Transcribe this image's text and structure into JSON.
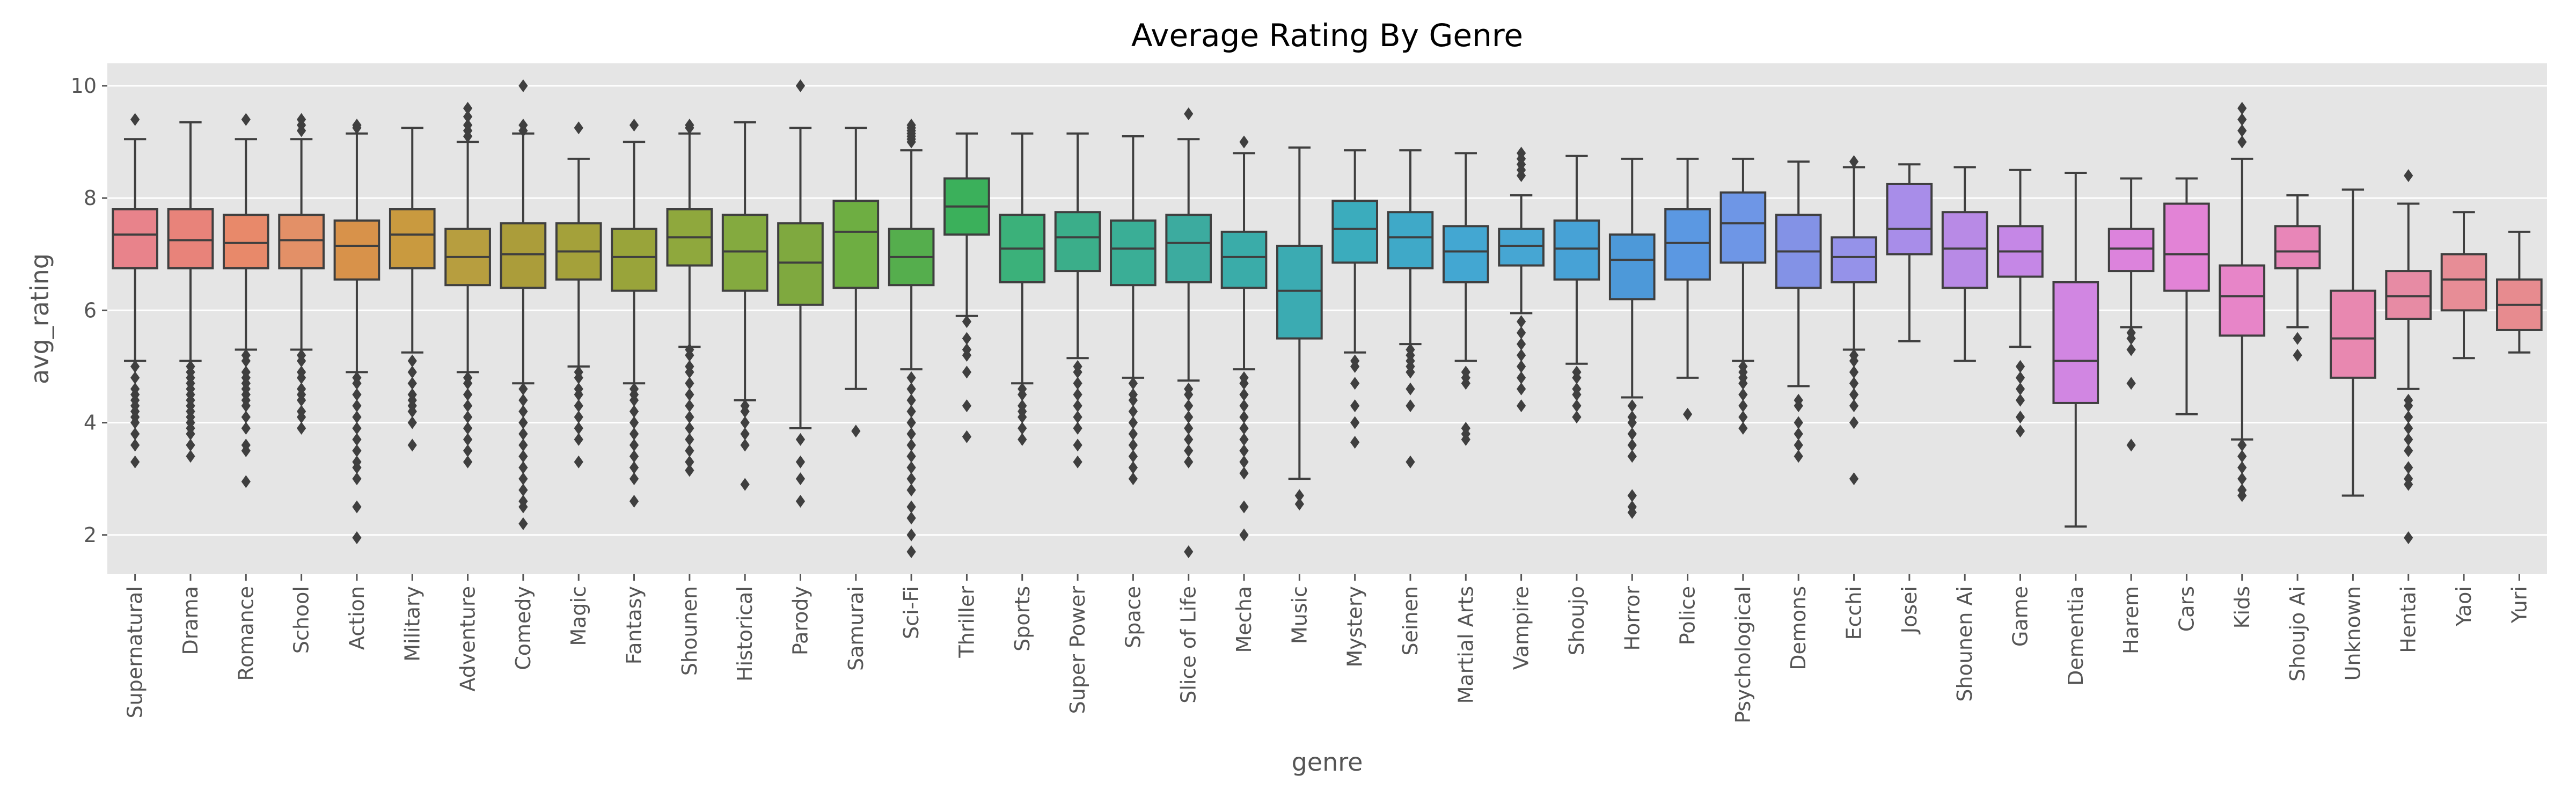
{
  "chart_data": {
    "type": "boxplot",
    "title": "Average Rating By Genre",
    "xlabel": "genre",
    "ylabel": "avg_rating",
    "ylim": [
      1.3,
      10.4
    ],
    "yticks": [
      2,
      4,
      6,
      8,
      10
    ],
    "grid": true,
    "background": "#e5e5e5",
    "categories": [
      "Supernatural",
      "Drama",
      "Romance",
      "School",
      "Action",
      "Military",
      "Adventure",
      "Comedy",
      "Magic",
      "Fantasy",
      "Shounen",
      "Historical",
      "Parody",
      "Samurai",
      "Sci-Fi",
      "Thriller",
      "Sports",
      "Super Power",
      "Space",
      "Slice of Life",
      "Mecha",
      "Music",
      "Mystery",
      "Seinen",
      "Martial Arts",
      "Vampire",
      "Shoujo",
      "Horror",
      "Police",
      "Psychological",
      "Demons",
      "Ecchi",
      "Josei",
      "Shounen Ai",
      "Game",
      "Dementia",
      "Harem",
      "Cars",
      "Kids",
      "Shoujo Ai",
      "Unknown",
      "Hentai",
      "Yaoi",
      "Yuri"
    ],
    "colors": [
      "#e8838b",
      "#e8837a",
      "#e8896a",
      "#e39067",
      "#d8924a",
      "#c99a3f",
      "#b79e3f",
      "#ab9d3a",
      "#a4a13a",
      "#99a43a",
      "#8fa83d",
      "#84aa3f",
      "#7fa93f",
      "#6eae42",
      "#55ae4d",
      "#3bb05b",
      "#3bb17a",
      "#3bae8a",
      "#3aae96",
      "#3cab9f",
      "#3aaca9",
      "#3babb2",
      "#3bacbd",
      "#3fa9c8",
      "#43a7d2",
      "#46a6d3",
      "#47a2d6",
      "#4d99d9",
      "#5b98e2",
      "#6e96e6",
      "#8392e6",
      "#9592e9",
      "#a88de9",
      "#b88ae6",
      "#c587e6",
      "#d186e2",
      "#dc83dc",
      "#e283d6",
      "#e785c8",
      "#e886b8",
      "#e888b0",
      "#e78ba4",
      "#e78d96",
      "#e78b8f"
    ],
    "boxes": [
      {
        "whislo": 5.1,
        "q1": 6.75,
        "med": 7.35,
        "q3": 7.8,
        "whishi": 9.05,
        "fliers": [
          9.4,
          5.0,
          4.8,
          4.6,
          4.5,
          4.4,
          4.3,
          4.2,
          4.1,
          4.0,
          3.8,
          3.6,
          3.3
        ]
      },
      {
        "whislo": 5.1,
        "q1": 6.75,
        "med": 7.25,
        "q3": 7.8,
        "whishi": 9.35,
        "fliers": [
          5.0,
          4.9,
          4.8,
          4.7,
          4.6,
          4.5,
          4.4,
          4.3,
          4.2,
          4.1,
          4.0,
          3.9,
          3.8,
          3.6,
          3.4
        ]
      },
      {
        "whislo": 5.3,
        "q1": 6.75,
        "med": 7.2,
        "q3": 7.7,
        "whishi": 9.05,
        "fliers": [
          9.4,
          5.2,
          5.1,
          4.9,
          4.8,
          4.7,
          4.6,
          4.5,
          4.4,
          4.3,
          4.1,
          3.9,
          3.6,
          3.5,
          2.95
        ]
      },
      {
        "whislo": 5.3,
        "q1": 6.75,
        "med": 7.25,
        "q3": 7.7,
        "whishi": 9.05,
        "fliers": [
          9.4,
          9.3,
          9.2,
          5.2,
          5.1,
          4.9,
          4.8,
          4.6,
          4.5,
          4.4,
          4.2,
          4.1,
          3.9
        ]
      },
      {
        "whislo": 4.9,
        "q1": 6.55,
        "med": 7.15,
        "q3": 7.6,
        "whishi": 9.15,
        "fliers": [
          9.3,
          9.25,
          4.8,
          4.7,
          4.5,
          4.3,
          4.1,
          3.9,
          3.7,
          3.5,
          3.3,
          3.2,
          3.0,
          2.5,
          1.95
        ]
      },
      {
        "whislo": 5.25,
        "q1": 6.75,
        "med": 7.35,
        "q3": 7.8,
        "whishi": 9.25,
        "fliers": [
          5.1,
          4.9,
          4.7,
          4.5,
          4.4,
          4.3,
          4.2,
          4.0,
          3.6
        ]
      },
      {
        "whislo": 4.9,
        "q1": 6.45,
        "med": 6.95,
        "q3": 7.45,
        "whishi": 9.0,
        "fliers": [
          9.6,
          9.45,
          9.3,
          9.2,
          9.1,
          4.8,
          4.7,
          4.5,
          4.3,
          4.1,
          3.9,
          3.7,
          3.5,
          3.3
        ]
      },
      {
        "whislo": 4.7,
        "q1": 6.4,
        "med": 7.0,
        "q3": 7.55,
        "whishi": 9.15,
        "fliers": [
          10.0,
          9.3,
          9.2,
          4.6,
          4.4,
          4.2,
          4.0,
          3.8,
          3.6,
          3.4,
          3.2,
          3.0,
          2.8,
          2.6,
          2.5,
          2.2
        ]
      },
      {
        "whislo": 5.0,
        "q1": 6.55,
        "med": 7.05,
        "q3": 7.55,
        "whishi": 8.7,
        "fliers": [
          9.25,
          4.9,
          4.8,
          4.6,
          4.5,
          4.3,
          4.1,
          3.9,
          3.7,
          3.3
        ]
      },
      {
        "whislo": 4.7,
        "q1": 6.35,
        "med": 6.95,
        "q3": 7.45,
        "whishi": 9.0,
        "fliers": [
          9.3,
          4.6,
          4.5,
          4.4,
          4.2,
          4.0,
          3.8,
          3.6,
          3.4,
          3.2,
          3.0,
          2.6
        ]
      },
      {
        "whislo": 5.35,
        "q1": 6.8,
        "med": 7.3,
        "q3": 7.8,
        "whishi": 9.15,
        "fliers": [
          9.3,
          9.25,
          5.3,
          5.2,
          5.0,
          4.9,
          4.7,
          4.5,
          4.3,
          4.1,
          3.9,
          3.7,
          3.5,
          3.3,
          3.15
        ]
      },
      {
        "whislo": 4.4,
        "q1": 6.35,
        "med": 7.05,
        "q3": 7.7,
        "whishi": 9.35,
        "fliers": [
          4.3,
          4.2,
          4.0,
          3.8,
          3.6,
          2.9
        ]
      },
      {
        "whislo": 3.9,
        "q1": 6.1,
        "med": 6.85,
        "q3": 7.55,
        "whishi": 9.25,
        "fliers": [
          10.0,
          3.7,
          3.3,
          3.0,
          2.6
        ]
      },
      {
        "whislo": 4.6,
        "q1": 6.4,
        "med": 7.4,
        "q3": 7.95,
        "whishi": 9.25,
        "fliers": [
          3.85
        ]
      },
      {
        "whislo": 4.95,
        "q1": 6.45,
        "med": 6.95,
        "q3": 7.45,
        "whishi": 8.85,
        "fliers": [
          9.3,
          9.25,
          9.2,
          9.15,
          9.1,
          9.05,
          9.0,
          4.8,
          4.6,
          4.4,
          4.2,
          4.0,
          3.8,
          3.6,
          3.4,
          3.2,
          3.0,
          2.8,
          2.5,
          2.3,
          2.0,
          1.7
        ]
      },
      {
        "whislo": 5.9,
        "q1": 7.35,
        "med": 7.85,
        "q3": 8.35,
        "whishi": 9.15,
        "fliers": [
          5.8,
          5.5,
          5.3,
          5.2,
          4.9,
          4.3,
          3.75
        ]
      },
      {
        "whislo": 4.7,
        "q1": 6.5,
        "med": 7.1,
        "q3": 7.7,
        "whishi": 9.15,
        "fliers": [
          4.6,
          4.5,
          4.3,
          4.2,
          4.1,
          3.9,
          3.7
        ]
      },
      {
        "whislo": 5.15,
        "q1": 6.7,
        "med": 7.3,
        "q3": 7.75,
        "whishi": 9.15,
        "fliers": [
          5.0,
          4.9,
          4.7,
          4.5,
          4.3,
          4.1,
          3.9,
          3.6,
          3.3
        ]
      },
      {
        "whislo": 4.8,
        "q1": 6.45,
        "med": 7.1,
        "q3": 7.6,
        "whishi": 9.1,
        "fliers": [
          4.7,
          4.5,
          4.4,
          4.2,
          4.0,
          3.8,
          3.6,
          3.4,
          3.2,
          3.0
        ]
      },
      {
        "whislo": 4.75,
        "q1": 6.5,
        "med": 7.2,
        "q3": 7.7,
        "whishi": 9.05,
        "fliers": [
          9.5,
          4.6,
          4.5,
          4.3,
          4.1,
          3.9,
          3.7,
          3.5,
          3.3,
          1.7
        ]
      },
      {
        "whislo": 4.95,
        "q1": 6.4,
        "med": 6.95,
        "q3": 7.4,
        "whishi": 8.8,
        "fliers": [
          9.0,
          4.8,
          4.7,
          4.5,
          4.3,
          4.1,
          3.9,
          3.7,
          3.5,
          3.3,
          3.1,
          2.5,
          2.0
        ]
      },
      {
        "whislo": 3.0,
        "q1": 5.5,
        "med": 6.35,
        "q3": 7.15,
        "whishi": 8.9,
        "fliers": [
          2.7,
          2.55
        ]
      },
      {
        "whislo": 5.25,
        "q1": 6.85,
        "med": 7.45,
        "q3": 7.95,
        "whishi": 8.85,
        "fliers": [
          5.1,
          5.0,
          4.7,
          4.3,
          4.0,
          3.65
        ]
      },
      {
        "whislo": 5.4,
        "q1": 6.75,
        "med": 7.3,
        "q3": 7.75,
        "whishi": 8.85,
        "fliers": [
          5.3,
          5.2,
          5.1,
          5.0,
          4.9,
          4.6,
          4.3,
          3.3
        ]
      },
      {
        "whislo": 5.1,
        "q1": 6.5,
        "med": 7.05,
        "q3": 7.5,
        "whishi": 8.8,
        "fliers": [
          4.9,
          4.8,
          4.7,
          3.9,
          3.8,
          3.7
        ]
      },
      {
        "whislo": 5.95,
        "q1": 6.8,
        "med": 7.15,
        "q3": 7.45,
        "whishi": 8.05,
        "fliers": [
          8.8,
          8.7,
          8.6,
          8.5,
          8.4,
          5.8,
          5.6,
          5.4,
          5.2,
          5.0,
          4.8,
          4.6,
          4.3
        ]
      },
      {
        "whislo": 5.05,
        "q1": 6.55,
        "med": 7.1,
        "q3": 7.6,
        "whishi": 8.75,
        "fliers": [
          4.9,
          4.8,
          4.6,
          4.5,
          4.3,
          4.1
        ]
      },
      {
        "whislo": 4.45,
        "q1": 6.2,
        "med": 6.9,
        "q3": 7.35,
        "whishi": 8.7,
        "fliers": [
          4.3,
          4.1,
          4.0,
          3.8,
          3.6,
          3.4,
          2.7,
          2.5,
          2.4
        ]
      },
      {
        "whislo": 4.8,
        "q1": 6.55,
        "med": 7.2,
        "q3": 7.8,
        "whishi": 8.7,
        "fliers": [
          4.15
        ]
      },
      {
        "whislo": 5.1,
        "q1": 6.85,
        "med": 7.55,
        "q3": 8.1,
        "whishi": 8.7,
        "fliers": [
          5.0,
          4.9,
          4.8,
          4.7,
          4.5,
          4.3,
          4.1,
          3.9
        ]
      },
      {
        "whislo": 4.65,
        "q1": 6.4,
        "med": 7.05,
        "q3": 7.7,
        "whishi": 8.65,
        "fliers": [
          4.4,
          4.3,
          4.0,
          3.8,
          3.6,
          3.4
        ]
      },
      {
        "whislo": 5.3,
        "q1": 6.5,
        "med": 6.95,
        "q3": 7.3,
        "whishi": 8.55,
        "fliers": [
          8.65,
          5.2,
          5.1,
          4.9,
          4.7,
          4.5,
          4.3,
          4.0,
          3.0
        ]
      },
      {
        "whislo": 5.45,
        "q1": 7.0,
        "med": 7.45,
        "q3": 8.25,
        "whishi": 8.6,
        "fliers": []
      },
      {
        "whislo": 5.1,
        "q1": 6.4,
        "med": 7.1,
        "q3": 7.75,
        "whishi": 8.55,
        "fliers": []
      },
      {
        "whislo": 5.35,
        "q1": 6.6,
        "med": 7.05,
        "q3": 7.5,
        "whishi": 8.5,
        "fliers": [
          5.0,
          4.8,
          4.6,
          4.4,
          4.1,
          3.85
        ]
      },
      {
        "whislo": 2.15,
        "q1": 4.35,
        "med": 5.1,
        "q3": 6.5,
        "whishi": 8.45,
        "fliers": []
      },
      {
        "whislo": 5.7,
        "q1": 6.7,
        "med": 7.1,
        "q3": 7.45,
        "whishi": 8.35,
        "fliers": [
          5.6,
          5.5,
          5.3,
          4.7,
          3.6
        ]
      },
      {
        "whislo": 4.15,
        "q1": 6.35,
        "med": 7.0,
        "q3": 7.9,
        "whishi": 8.35,
        "fliers": []
      },
      {
        "whislo": 3.7,
        "q1": 5.55,
        "med": 6.25,
        "q3": 6.8,
        "whishi": 8.7,
        "fliers": [
          9.6,
          9.4,
          9.2,
          9.0,
          3.6,
          3.4,
          3.2,
          3.0,
          2.8,
          2.7
        ]
      },
      {
        "whislo": 5.7,
        "q1": 6.75,
        "med": 7.05,
        "q3": 7.5,
        "whishi": 8.05,
        "fliers": [
          5.5,
          5.2
        ]
      },
      {
        "whislo": 2.7,
        "q1": 4.8,
        "med": 5.5,
        "q3": 6.35,
        "whishi": 8.15,
        "fliers": []
      },
      {
        "whislo": 4.6,
        "q1": 5.85,
        "med": 6.25,
        "q3": 6.7,
        "whishi": 7.9,
        "fliers": [
          8.4,
          4.4,
          4.3,
          4.1,
          3.9,
          3.7,
          3.5,
          3.2,
          3.0,
          2.9,
          1.95
        ]
      },
      {
        "whislo": 5.15,
        "q1": 6.0,
        "med": 6.55,
        "q3": 7.0,
        "whishi": 7.75,
        "fliers": []
      },
      {
        "whislo": 5.25,
        "q1": 5.65,
        "med": 6.1,
        "q3": 6.55,
        "whishi": 7.4,
        "fliers": []
      }
    ]
  }
}
